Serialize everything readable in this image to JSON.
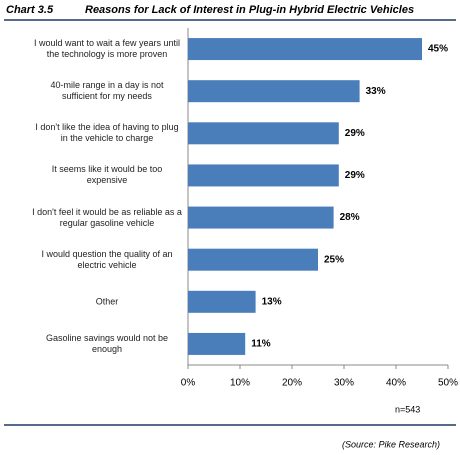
{
  "chart_data": {
    "type": "bar",
    "orientation": "horizontal",
    "label": "Chart 3.5",
    "title": "Reasons for Lack of Interest in Plug-in Hybrid Electric Vehicles",
    "categories": [
      "I would want to wait a few years until the technology is more proven",
      "40-mile range in a day is not sufficient for my needs",
      "I don't like the idea of having to plug in the vehicle to charge",
      "It seems like it would be too expensive",
      "I don't feel it would be as reliable as a regular gasoline vehicle",
      "I would question the quality of an electric vehicle",
      "Other",
      "Gasoline savings would not be enough"
    ],
    "values": [
      45,
      33,
      29,
      29,
      28,
      25,
      13,
      11
    ],
    "value_labels": [
      "45%",
      "33%",
      "29%",
      "29%",
      "28%",
      "25%",
      "13%",
      "11%"
    ],
    "color": "#4a7ebb",
    "xlim": [
      0,
      50
    ],
    "xticks": [
      {
        "value": 0,
        "label": "0%"
      },
      {
        "value": 10,
        "label": "10%"
      },
      {
        "value": 20,
        "label": "20%"
      },
      {
        "value": 30,
        "label": "30%"
      },
      {
        "value": 40,
        "label": "40%"
      },
      {
        "value": 50,
        "label": "50%"
      }
    ],
    "note": "n=543",
    "source": "(Source: Pike Research)"
  }
}
